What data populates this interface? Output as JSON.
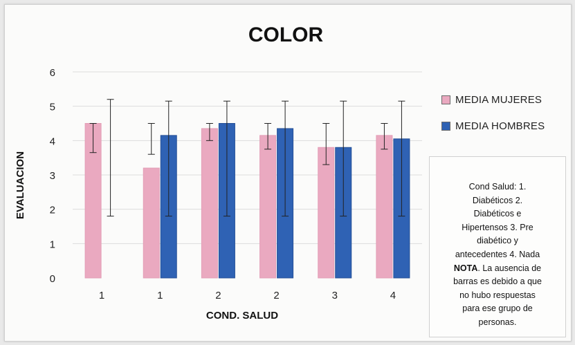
{
  "chart_data": {
    "type": "bar",
    "title": "COLOR",
    "xlabel": "COND. SALUD",
    "ylabel": "EVALUACION",
    "ylim": [
      0,
      6
    ],
    "yticks": [
      "0",
      "1",
      "2",
      "3",
      "4",
      "5",
      "6"
    ],
    "categories": [
      "1",
      "1",
      "2",
      "2",
      "3",
      "4"
    ],
    "grid": true,
    "legend_position": "right",
    "series": [
      {
        "name": "MEDIA MUJERES",
        "color": "#eaa9c0",
        "values": [
          4.5,
          3.2,
          4.35,
          4.15,
          3.8,
          4.15
        ],
        "error_low": [
          3.65,
          3.6,
          4.0,
          3.75,
          3.3,
          3.75
        ],
        "error_high": [
          4.5,
          4.5,
          4.5,
          4.5,
          4.5,
          4.5
        ]
      },
      {
        "name": "MEDIA HOMBRES",
        "color": "#2f62b4",
        "values": [
          null,
          4.15,
          4.5,
          4.35,
          3.8,
          4.05
        ],
        "error_low": [
          1.8,
          1.8,
          1.8,
          1.8,
          1.8,
          1.8
        ],
        "error_high": [
          5.2,
          5.15,
          5.15,
          5.15,
          5.15,
          5.15
        ]
      }
    ]
  },
  "note": {
    "line1": "Cond Salud:           1.",
    "line2": "Diabéticos  2.",
    "line3": "Diabéticos e",
    "line4": "Hipertensos  3. Pre",
    "line5": "diabético y",
    "line6": "antecedentes  4. Nada",
    "bold": "NOTA",
    "line7": ". La ausencia de",
    "line8": "barras es debido a que",
    "line9": "no hubo respuestas",
    "line10": "para ese grupo de",
    "line11": "personas."
  }
}
